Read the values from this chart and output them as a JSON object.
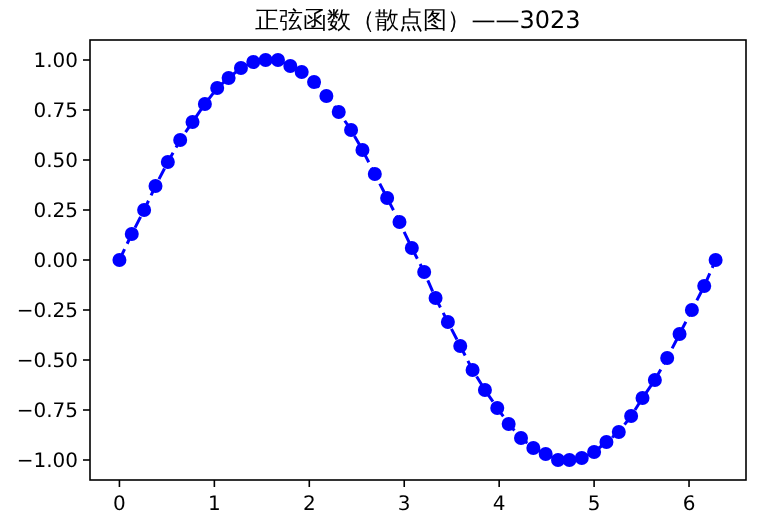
{
  "chart_data": {
    "type": "line",
    "title": "正弦函数（散点图）——3023",
    "x": [
      0.0,
      0.13,
      0.26,
      0.38,
      0.51,
      0.64,
      0.77,
      0.9,
      1.03,
      1.15,
      1.28,
      1.41,
      1.54,
      1.67,
      1.8,
      1.92,
      2.05,
      2.18,
      2.31,
      2.44,
      2.56,
      2.69,
      2.82,
      2.95,
      3.08,
      3.21,
      3.33,
      3.46,
      3.59,
      3.72,
      3.85,
      3.98,
      4.1,
      4.23,
      4.36,
      4.49,
      4.62,
      4.74,
      4.87,
      5.0,
      5.13,
      5.26,
      5.39,
      5.51,
      5.64,
      5.77,
      5.9,
      6.03,
      6.16,
      6.28
    ],
    "series": [
      {
        "color": "#0000ff",
        "values": [
          0.0,
          0.13,
          0.25,
          0.37,
          0.49,
          0.6,
          0.69,
          0.78,
          0.86,
          0.91,
          0.96,
          0.99,
          1.0,
          1.0,
          0.97,
          0.94,
          0.89,
          0.82,
          0.74,
          0.65,
          0.55,
          0.43,
          0.31,
          0.19,
          0.06,
          -0.06,
          -0.19,
          -0.31,
          -0.43,
          -0.55,
          -0.65,
          -0.74,
          -0.82,
          -0.89,
          -0.94,
          -0.97,
          -1.0,
          -1.0,
          -0.99,
          -0.96,
          -0.91,
          -0.86,
          -0.78,
          -0.69,
          -0.6,
          -0.49,
          -0.37,
          -0.25,
          -0.13,
          0.0
        ]
      }
    ],
    "xlim": [
      -0.31,
      6.6
    ],
    "ylim": [
      -1.1,
      1.1
    ],
    "xticks": [
      0,
      1,
      2,
      3,
      4,
      5,
      6
    ],
    "yticks": [
      {
        "value": -1,
        "label": "−1.00"
      },
      {
        "value": -0.75,
        "label": "−0.75"
      },
      {
        "value": -0.5,
        "label": "−0.50"
      },
      {
        "value": -0.25,
        "label": "−0.25"
      },
      {
        "value": 0,
        "label": "0.00"
      },
      {
        "value": 0.25,
        "label": "0.25"
      },
      {
        "value": 0.5,
        "label": "0.50"
      },
      {
        "value": 0.75,
        "label": "0.75"
      },
      {
        "value": 1,
        "label": "1.00"
      }
    ],
    "marker": "circle",
    "line_style": "dashed",
    "grid": false
  }
}
